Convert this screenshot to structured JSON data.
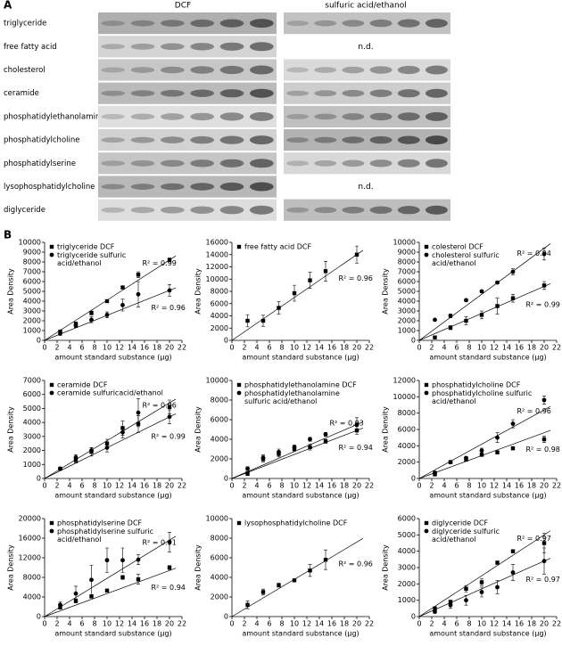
{
  "panel_a": {
    "label": "A",
    "columns": [
      "DCF",
      "sulfuric acid/ethanol"
    ],
    "rows": [
      {
        "name": "triglyceride"
      },
      {
        "name": "free fatty acid",
        "note": "n.d."
      },
      {
        "name": "cholesterol"
      },
      {
        "name": "ceramide"
      },
      {
        "name": "phosphatidylethanolamine"
      },
      {
        "name": "phosphatidylcholine"
      },
      {
        "name": "phosphatidylserine"
      },
      {
        "name": "lysophosphatidylcholine",
        "note": "n.d."
      },
      {
        "name": "diglyceride"
      }
    ]
  },
  "panel_b_label": "B",
  "chart_data": [
    {
      "type": "scatter",
      "xlabel": "amount standard substance (μg)",
      "ylabel": "Area Density",
      "xlim": [
        0,
        22
      ],
      "xticks": [
        0,
        2,
        4,
        6,
        8,
        10,
        12,
        14,
        16,
        18,
        20,
        22
      ],
      "ylim": [
        0,
        10000
      ],
      "yticks": [
        0,
        1000,
        2000,
        3000,
        4000,
        5000,
        6000,
        7000,
        8000,
        9000,
        10000
      ],
      "series": [
        {
          "name": "triglyceride DCF",
          "marker": "square",
          "color": "#000000",
          "x": [
            2.5,
            5,
            7.5,
            10,
            12.5,
            15,
            20
          ],
          "values": [
            900,
            1700,
            2800,
            4000,
            5400,
            6700,
            8200
          ],
          "errors": [
            150,
            150,
            200,
            150,
            150,
            300,
            200
          ],
          "trend_slope": 410,
          "r2_label": "R² = 0.99"
        },
        {
          "name": "triglyceride sulfuric acid/ethanol",
          "marker": "circle",
          "color": "#000000",
          "x": [
            2.5,
            5,
            7.5,
            10,
            12.5,
            15,
            20
          ],
          "values": [
            700,
            1500,
            2100,
            2600,
            3600,
            4700,
            5100
          ],
          "errors": [
            200,
            200,
            300,
            300,
            600,
            1300,
            600
          ],
          "trend_slope": 255,
          "r2_label": "R² = 0.96"
        }
      ]
    },
    {
      "type": "scatter",
      "xlabel": "amount standard substance (μg)",
      "ylabel": "Area Density",
      "xlim": [
        0,
        22
      ],
      "xticks": [
        0,
        2,
        4,
        6,
        8,
        10,
        12,
        14,
        16,
        18,
        20,
        22
      ],
      "ylim": [
        0,
        16000
      ],
      "yticks": [
        0,
        2000,
        4000,
        6000,
        8000,
        10000,
        12000,
        14000,
        16000
      ],
      "series": [
        {
          "name": "free fatty acid DCF",
          "marker": "square",
          "color": "#000000",
          "x": [
            2.5,
            5,
            7.5,
            10,
            12.5,
            15,
            20
          ],
          "values": [
            3200,
            3200,
            5300,
            7700,
            9800,
            11300,
            14000
          ],
          "errors": [
            1000,
            900,
            1000,
            1300,
            1300,
            1600,
            1400
          ],
          "trend_slope": 700,
          "r2_label": "R² = 0.96"
        }
      ]
    },
    {
      "type": "scatter",
      "xlabel": "amount standard substance (μg)",
      "ylabel": "Area Density",
      "xlim": [
        0,
        22
      ],
      "xticks": [
        0,
        2,
        4,
        6,
        8,
        10,
        12,
        14,
        16,
        18,
        20,
        22
      ],
      "ylim": [
        0,
        10000
      ],
      "yticks": [
        0,
        1000,
        2000,
        3000,
        4000,
        5000,
        6000,
        7000,
        8000,
        9000,
        10000
      ],
      "series": [
        {
          "name": "colesterol DCF",
          "marker": "square",
          "color": "#000000",
          "x": [
            2.5,
            5,
            7.5,
            10,
            12.5,
            15,
            20
          ],
          "values": [
            300,
            1300,
            2000,
            2600,
            3500,
            4300,
            5600
          ],
          "errors": [
            100,
            200,
            400,
            400,
            800,
            400,
            400
          ],
          "trend_slope": 275,
          "r2_label": "R² = 0.99"
        },
        {
          "name": "cholesterol sulfuric acid/ethanol",
          "marker": "circle",
          "color": "#000000",
          "x": [
            2.5,
            5,
            7.5,
            10,
            12.5,
            15,
            20
          ],
          "values": [
            2100,
            2500,
            4100,
            5000,
            5900,
            7000,
            8800
          ],
          "errors": [
            100,
            200,
            150,
            150,
            150,
            300,
            600
          ],
          "trend_slope": 470,
          "r2_label": "R² = 0.94"
        }
      ]
    },
    {
      "type": "scatter",
      "xlabel": "amount standard substance (μg)",
      "ylabel": "Area Density",
      "xlim": [
        0,
        22
      ],
      "xticks": [
        0,
        2,
        4,
        6,
        8,
        10,
        12,
        14,
        16,
        18,
        20,
        22
      ],
      "ylim": [
        0,
        7000
      ],
      "yticks": [
        0,
        1000,
        2000,
        3000,
        4000,
        5000,
        6000,
        7000
      ],
      "series": [
        {
          "name": "ceramide DCF",
          "marker": "square",
          "color": "#000000",
          "x": [
            2.5,
            5,
            7.5,
            10,
            12.5,
            15,
            20
          ],
          "values": [
            700,
            1300,
            1900,
            2500,
            3600,
            3900,
            5100
          ],
          "errors": [
            100,
            200,
            300,
            300,
            500,
            600,
            500
          ],
          "trend_slope": 270,
          "r2_label": "R² = 0.96"
        },
        {
          "name": "ceramide sulfuricacid/ethanol",
          "marker": "circle",
          "color": "#000000",
          "x": [
            2.5,
            5,
            7.5,
            10,
            12.5,
            15,
            20
          ],
          "values": [
            700,
            1500,
            2000,
            2200,
            3300,
            4700,
            4400
          ],
          "errors": [
            100,
            200,
            200,
            300,
            400,
            1000,
            500
          ],
          "trend_slope": 220,
          "r2_label": "R² = 0.99"
        }
      ]
    },
    {
      "type": "scatter",
      "xlabel": "amount standard substance (μg)",
      "ylabel": "Area Density",
      "xlim": [
        0,
        22
      ],
      "xticks": [
        0,
        2,
        4,
        6,
        8,
        10,
        12,
        14,
        16,
        18,
        20,
        22
      ],
      "ylim": [
        0,
        10000
      ],
      "yticks": [
        0,
        2000,
        4000,
        6000,
        8000,
        10000
      ],
      "series": [
        {
          "name": "phosphatidylethanolamine DCF",
          "marker": "square",
          "color": "#000000",
          "x": [
            2.5,
            5,
            7.5,
            10,
            12.5,
            15,
            20
          ],
          "values": [
            500,
            2000,
            2500,
            3000,
            3200,
            3800,
            4900
          ],
          "errors": [
            200,
            300,
            300,
            200,
            300,
            200,
            400
          ],
          "trend_slope": 245,
          "r2_label": "R² = 0.94"
        },
        {
          "name": "phosphatidylethanolamine sulfuric acid/ethanol",
          "marker": "circle",
          "color": "#000000",
          "x": [
            2.5,
            5,
            7.5,
            10,
            12.5,
            15,
            20
          ],
          "values": [
            1000,
            2100,
            2700,
            3200,
            4000,
            4500,
            5500
          ],
          "errors": [
            200,
            300,
            300,
            200,
            200,
            200,
            700
          ],
          "trend_slope": 275,
          "r2_label": "R² = 0.93"
        }
      ]
    },
    {
      "type": "scatter",
      "xlabel": "amount standard substance (μg)",
      "ylabel": "Area Density",
      "xlim": [
        0,
        22
      ],
      "xticks": [
        0,
        2,
        4,
        6,
        8,
        10,
        12,
        14,
        16,
        18,
        20,
        22
      ],
      "ylim": [
        0,
        12000
      ],
      "yticks": [
        0,
        2000,
        4000,
        6000,
        8000,
        10000,
        12000
      ],
      "series": [
        {
          "name": "phosphatidylcholine DCF",
          "marker": "square",
          "color": "#000000",
          "x": [
            2.5,
            5,
            7.5,
            10,
            12.5,
            15,
            20
          ],
          "values": [
            500,
            2000,
            2300,
            2900,
            3200,
            3700,
            4800
          ],
          "errors": [
            200,
            200,
            200,
            200,
            200,
            200,
            400
          ],
          "trend_slope": 280,
          "r2_label": "R² = 0.98"
        },
        {
          "name": "phosphatidylcholine sulfuric acid/ethanol",
          "marker": "circle",
          "color": "#000000",
          "x": [
            2.5,
            5,
            7.5,
            10,
            12.5,
            15,
            20
          ],
          "values": [
            700,
            2000,
            2500,
            3400,
            5000,
            6700,
            9600
          ],
          "errors": [
            200,
            200,
            200,
            300,
            600,
            500,
            500
          ],
          "trend_slope": 420,
          "r2_label": "R² = 0.96"
        }
      ]
    },
    {
      "type": "scatter",
      "xlabel": "amount standard substance (μg)",
      "ylabel": "Area Density",
      "xlim": [
        0,
        22
      ],
      "xticks": [
        0,
        2,
        4,
        6,
        8,
        10,
        12,
        14,
        16,
        18,
        20,
        22
      ],
      "ylim": [
        0,
        20000
      ],
      "yticks": [
        0,
        4000,
        8000,
        12000,
        16000,
        20000
      ],
      "series": [
        {
          "name": "phosphatidylserine DCF",
          "marker": "square",
          "color": "#000000",
          "x": [
            2.5,
            5,
            7.5,
            10,
            12.5,
            15,
            20
          ],
          "values": [
            1900,
            3200,
            4100,
            5300,
            8000,
            7600,
            10000
          ],
          "errors": [
            400,
            400,
            300,
            300,
            400,
            1000,
            400
          ],
          "trend_slope": 470,
          "r2_label": "R² = 0.94"
        },
        {
          "name": "phosphatidylserine sulfuric acid/ethanol",
          "marker": "circle",
          "color": "#000000",
          "x": [
            2.5,
            5,
            7.5,
            10,
            12.5,
            15,
            20
          ],
          "values": [
            2400,
            4700,
            7500,
            11500,
            11500,
            11600,
            15200
          ],
          "errors": [
            600,
            1500,
            3000,
            2500,
            2500,
            1000,
            2000
          ],
          "trend_slope": 780,
          "r2_label": "R² = 0.91"
        }
      ]
    },
    {
      "type": "scatter",
      "xlabel": "amount standard substance (μg)",
      "ylabel": "Area Density",
      "xlim": [
        0,
        22
      ],
      "xticks": [
        0,
        2,
        4,
        6,
        8,
        10,
        12,
        14,
        16,
        18,
        20,
        22
      ],
      "ylim": [
        0,
        10000
      ],
      "yticks": [
        0,
        2000,
        4000,
        6000,
        8000,
        10000
      ],
      "series": [
        {
          "name": "lysophosphatidylcholine DCF",
          "marker": "square",
          "color": "#000000",
          "x": [
            2.5,
            5,
            7.5,
            10,
            12.5,
            15
          ],
          "values": [
            1200,
            2500,
            3200,
            3700,
            4700,
            5800
          ],
          "errors": [
            400,
            300,
            200,
            100,
            600,
            1000
          ],
          "trend_slope": 380,
          "r2_label": "R² = 0.96"
        }
      ]
    },
    {
      "type": "scatter",
      "xlabel": "amount standard substance (μg)",
      "ylabel": "Area Density",
      "xlim": [
        0,
        22
      ],
      "xticks": [
        0,
        2,
        4,
        6,
        8,
        10,
        12,
        14,
        16,
        18,
        20,
        22
      ],
      "ylim": [
        0,
        6000
      ],
      "yticks": [
        0,
        1000,
        2000,
        3000,
        4000,
        5000,
        6000
      ],
      "series": [
        {
          "name": "diglyceride DCF",
          "marker": "square",
          "color": "#000000",
          "x": [
            2.5,
            5,
            7.5,
            10,
            12.5,
            15,
            20
          ],
          "values": [
            500,
            900,
            1700,
            2100,
            3300,
            4000,
            4500
          ],
          "errors": [
            100,
            100,
            200,
            200,
            100,
            100,
            600
          ],
          "trend_slope": 250,
          "r2_label": "R² = 0.97"
        },
        {
          "name": "diglyceride sulfuric acid/ethanol",
          "marker": "circle",
          "color": "#000000",
          "x": [
            2.5,
            5,
            7.5,
            10,
            12.5,
            15,
            20
          ],
          "values": [
            300,
            700,
            1000,
            1500,
            1800,
            2700,
            3400
          ],
          "errors": [
            100,
            200,
            300,
            300,
            400,
            500,
            800
          ],
          "trend_slope": 170,
          "r2_label": "R² = 0.97"
        }
      ]
    }
  ]
}
